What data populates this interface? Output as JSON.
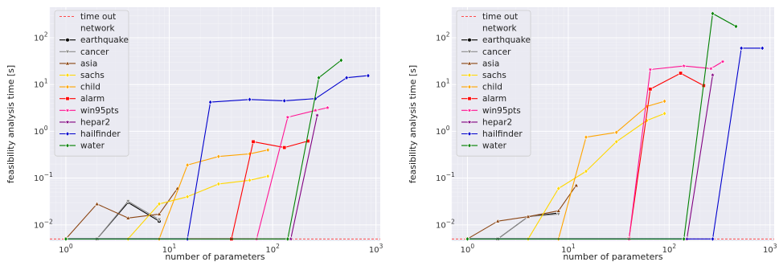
{
  "chart_data": [
    {
      "type": "line",
      "xlabel": "number of parameters",
      "ylabel": "feasibility analysis time [s]",
      "xscale": "log",
      "yscale": "log",
      "xlim": [
        0.7,
        1100
      ],
      "ylim": [
        0.0045,
        450
      ],
      "grid": true,
      "legend_position": "top-left",
      "x_ticks": [
        {
          "value": 1,
          "base": "10",
          "exp": "0"
        },
        {
          "value": 10,
          "base": "10",
          "exp": "1"
        },
        {
          "value": 100,
          "base": "10",
          "exp": "2"
        },
        {
          "value": 1000,
          "base": "10",
          "exp": "3"
        }
      ],
      "y_ticks": [
        {
          "value": 0.01,
          "base": "10",
          "exp": "−2"
        },
        {
          "value": 0.1,
          "base": "10",
          "exp": "−1"
        },
        {
          "value": 1,
          "base": "10",
          "exp": "0"
        },
        {
          "value": 10,
          "base": "10",
          "exp": "1"
        },
        {
          "value": 100,
          "base": "10",
          "exp": "2"
        }
      ],
      "timeout": {
        "label": "time out",
        "value": 0.005,
        "color": "#ff4d4d"
      },
      "legend_title": "network",
      "series": [
        {
          "name": "earthquake",
          "color": "#000000",
          "marker": "circle",
          "x": [
            1,
            2,
            4,
            8
          ],
          "y": [
            0.005,
            0.005,
            0.03,
            0.012
          ]
        },
        {
          "name": "cancer",
          "color": "#8c8c8c",
          "marker": "triangle-down",
          "x": [
            1,
            2,
            4,
            8
          ],
          "y": [
            0.005,
            0.005,
            0.032,
            0.013
          ]
        },
        {
          "name": "asia",
          "color": "#8b4513",
          "marker": "triangle-up",
          "x": [
            1,
            2,
            4,
            8,
            12
          ],
          "y": [
            0.005,
            0.028,
            0.014,
            0.017,
            0.06
          ]
        },
        {
          "name": "sachs",
          "color": "#ffd700",
          "marker": "diamond",
          "x": [
            1,
            4,
            8,
            15,
            30,
            60,
            90
          ],
          "y": [
            0.005,
            0.005,
            0.028,
            0.04,
            0.075,
            0.09,
            0.11
          ]
        },
        {
          "name": "child",
          "color": "#ffa500",
          "marker": "diamond",
          "x": [
            1,
            8,
            15,
            30,
            60,
            90
          ],
          "y": [
            0.005,
            0.005,
            0.19,
            0.29,
            0.33,
            0.4
          ]
        },
        {
          "name": "alarm",
          "color": "#ff0000",
          "marker": "square",
          "x": [
            1,
            40,
            65,
            130,
            220
          ],
          "y": [
            0.005,
            0.005,
            0.6,
            0.45,
            0.62
          ]
        },
        {
          "name": "win95pts",
          "color": "#ff1493",
          "marker": "star",
          "x": [
            1,
            70,
            140,
            260,
            340
          ],
          "y": [
            0.005,
            0.005,
            2.0,
            2.8,
            3.2
          ]
        },
        {
          "name": "hepar2",
          "color": "#800080",
          "marker": "star",
          "x": [
            1,
            150,
            270
          ],
          "y": [
            0.005,
            0.005,
            2.2
          ]
        },
        {
          "name": "hailfinder",
          "color": "#0000cd",
          "marker": "diamond",
          "x": [
            1,
            15,
            25,
            60,
            130,
            260,
            520,
            840
          ],
          "y": [
            0.005,
            0.005,
            4.2,
            4.8,
            4.5,
            5.0,
            14.0,
            15.5
          ]
        },
        {
          "name": "water",
          "color": "#008000",
          "marker": "diamond",
          "x": [
            1,
            140,
            280,
            460
          ],
          "y": [
            0.005,
            0.005,
            14.0,
            33.0
          ]
        }
      ]
    },
    {
      "type": "line",
      "xlabel": "number of parameters",
      "ylabel": "feasibility analysis time [s]",
      "xscale": "log",
      "yscale": "log",
      "xlim": [
        0.7,
        1100
      ],
      "ylim": [
        0.0045,
        450
      ],
      "grid": true,
      "legend_position": "top-left",
      "x_ticks": [
        {
          "value": 1,
          "base": "10",
          "exp": "0"
        },
        {
          "value": 10,
          "base": "10",
          "exp": "1"
        },
        {
          "value": 100,
          "base": "10",
          "exp": "2"
        },
        {
          "value": 1000,
          "base": "10",
          "exp": "3"
        }
      ],
      "y_ticks": [
        {
          "value": 0.01,
          "base": "10",
          "exp": "−2"
        },
        {
          "value": 0.1,
          "base": "10",
          "exp": "−1"
        },
        {
          "value": 1,
          "base": "10",
          "exp": "0"
        },
        {
          "value": 10,
          "base": "10",
          "exp": "1"
        },
        {
          "value": 100,
          "base": "10",
          "exp": "2"
        }
      ],
      "timeout": {
        "label": "time out",
        "value": 0.005,
        "color": "#ff4d4d"
      },
      "legend_title": "network",
      "series": [
        {
          "name": "earthquake",
          "color": "#000000",
          "marker": "circle",
          "x": [
            1,
            2,
            4,
            8
          ],
          "y": [
            0.005,
            0.005,
            0.015,
            0.018
          ]
        },
        {
          "name": "cancer",
          "color": "#8c8c8c",
          "marker": "triangle-down",
          "x": [
            1,
            2,
            4,
            8
          ],
          "y": [
            0.005,
            0.005,
            0.015,
            0.017
          ]
        },
        {
          "name": "asia",
          "color": "#8b4513",
          "marker": "triangle-up",
          "x": [
            1,
            2,
            4,
            8,
            12
          ],
          "y": [
            0.005,
            0.012,
            0.015,
            0.02,
            0.07
          ]
        },
        {
          "name": "sachs",
          "color": "#ffd700",
          "marker": "diamond",
          "x": [
            1,
            4,
            8,
            15,
            30,
            60,
            90
          ],
          "y": [
            0.005,
            0.005,
            0.06,
            0.14,
            0.6,
            1.7,
            2.4
          ]
        },
        {
          "name": "child",
          "color": "#ffa500",
          "marker": "diamond",
          "x": [
            1,
            8,
            15,
            30,
            60,
            90
          ],
          "y": [
            0.005,
            0.005,
            0.75,
            0.95,
            3.4,
            4.4
          ]
        },
        {
          "name": "alarm",
          "color": "#ff0000",
          "marker": "square",
          "x": [
            1,
            40,
            65,
            130,
            220
          ],
          "y": [
            0.005,
            0.005,
            8.0,
            17.5,
            9.5
          ]
        },
        {
          "name": "win95pts",
          "color": "#ff1493",
          "marker": "star",
          "x": [
            1,
            40,
            65,
            140,
            260,
            340
          ],
          "y": [
            0.005,
            0.005,
            21.0,
            25.0,
            22.0,
            31.0
          ]
        },
        {
          "name": "hepar2",
          "color": "#800080",
          "marker": "star",
          "x": [
            1,
            150,
            270
          ],
          "y": [
            0.005,
            0.005,
            16.0
          ]
        },
        {
          "name": "hailfinder",
          "color": "#0000cd",
          "marker": "diamond",
          "x": [
            1,
            270,
            520,
            840
          ],
          "y": [
            0.005,
            0.005,
            60.0,
            60.0
          ]
        },
        {
          "name": "water",
          "color": "#008000",
          "marker": "diamond",
          "x": [
            1,
            140,
            270,
            460
          ],
          "y": [
            0.005,
            0.005,
            330.0,
            175.0
          ]
        }
      ]
    }
  ]
}
